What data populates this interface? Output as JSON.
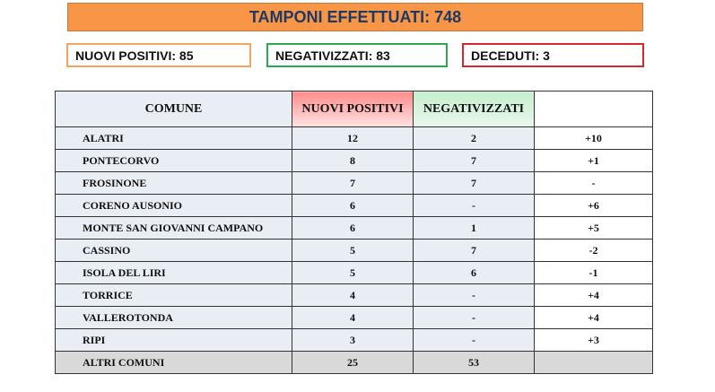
{
  "header": {
    "title": "TAMPONI EFFETTUATI: 748"
  },
  "summary": {
    "positivi": "NUOVI POSITIVI: 85",
    "negativizzati": "NEGATIVIZZATI: 83",
    "deceduti": "DECEDUTI: 3"
  },
  "colors": {
    "banner": "#f79646",
    "positivi_border": "#f4a460",
    "negativizzati_border": "#2ea84f",
    "deceduti_border": "#d9262c"
  },
  "table": {
    "headers": [
      "COMUNE",
      "NUOVI POSITIVI",
      "NEGATIVIZZATI",
      ""
    ],
    "rows": [
      [
        "ALATRI",
        "12",
        "2",
        "+10"
      ],
      [
        "PONTECORVO",
        "8",
        "7",
        "+1"
      ],
      [
        "FROSINONE",
        "7",
        "7",
        "-"
      ],
      [
        "CORENO AUSONIO",
        "6",
        "-",
        "+6"
      ],
      [
        "MONTE SAN GIOVANNI CAMPANO",
        "6",
        "1",
        "+5"
      ],
      [
        "CASSINO",
        "5",
        "7",
        "-2"
      ],
      [
        "ISOLA DEL LIRI",
        "5",
        "6",
        "-1"
      ],
      [
        "TORRICE",
        "4",
        "-",
        "+4"
      ],
      [
        "VALLEROTONDA",
        "4",
        "-",
        "+4"
      ],
      [
        "RIPI",
        "3",
        "-",
        "+3"
      ]
    ],
    "total": [
      "ALTRI COMUNI",
      "25",
      "53",
      ""
    ]
  }
}
